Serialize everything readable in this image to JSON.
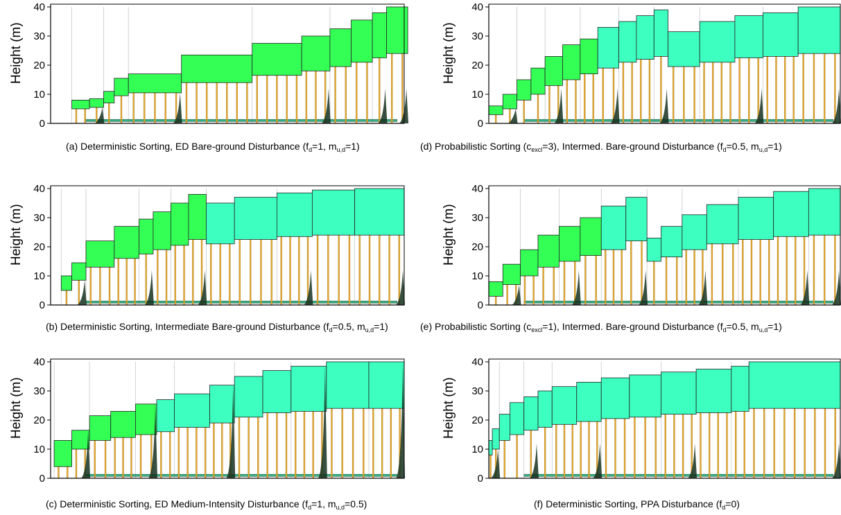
{
  "chart_data": [
    {
      "type": "area",
      "ylabel": "Height (m)",
      "ylim": [
        0,
        40
      ],
      "yticks": [
        0,
        10,
        20,
        30,
        40
      ],
      "caption": {
        "text": "(a) Deterministic Sorting, ED Bare-ground Disturbance (f",
        "sub1": "d",
        "mid1": "=1, m",
        "sub2": "u,d",
        "tail": "=1)"
      },
      "crowns": [
        {
          "x": 0.06,
          "w": 0.05,
          "top": 8,
          "bottom": 5
        },
        {
          "x": 0.11,
          "w": 0.04,
          "top": 8.5,
          "bottom": 5.5
        },
        {
          "x": 0.15,
          "w": 0.03,
          "top": 11,
          "bottom": 7
        },
        {
          "x": 0.18,
          "w": 0.04,
          "top": 15.5,
          "bottom": 9.5
        },
        {
          "x": 0.22,
          "w": 0.15,
          "top": 17,
          "bottom": 10.5
        },
        {
          "x": 0.37,
          "w": 0.2,
          "top": 23.5,
          "bottom": 14
        },
        {
          "x": 0.57,
          "w": 0.14,
          "top": 27.5,
          "bottom": 16.5
        },
        {
          "x": 0.71,
          "w": 0.08,
          "top": 30,
          "bottom": 18
        },
        {
          "x": 0.79,
          "w": 0.06,
          "top": 32.5,
          "bottom": 19.5
        },
        {
          "x": 0.85,
          "w": 0.06,
          "top": 35.5,
          "bottom": 21
        },
        {
          "x": 0.91,
          "w": 0.04,
          "top": 38,
          "bottom": 22.5
        },
        {
          "x": 0.95,
          "w": 0.06,
          "top": 40,
          "bottom": 24
        }
      ]
    },
    {
      "type": "area",
      "ylabel": "Height (m)",
      "ylim": [
        0,
        40
      ],
      "yticks": [
        0,
        10,
        20,
        30,
        40
      ],
      "caption": {
        "text": "(b) Deterministic Sorting, Intermediate Bare-ground Disturbance (f",
        "sub1": "d",
        "mid1": "=0.5, m",
        "sub2": "u,d",
        "tail": "=1)"
      },
      "crowns": [
        {
          "x": 0.03,
          "w": 0.03,
          "top": 10,
          "bottom": 5
        },
        {
          "x": 0.06,
          "w": 0.04,
          "top": 14.5,
          "bottom": 8.5
        },
        {
          "x": 0.1,
          "w": 0.08,
          "top": 22,
          "bottom": 13
        },
        {
          "x": 0.18,
          "w": 0.07,
          "top": 27,
          "bottom": 16
        },
        {
          "x": 0.25,
          "w": 0.04,
          "top": 29.5,
          "bottom": 17.5
        },
        {
          "x": 0.29,
          "w": 0.05,
          "top": 32,
          "bottom": 19
        },
        {
          "x": 0.34,
          "w": 0.05,
          "top": 35,
          "bottom": 20.5
        },
        {
          "x": 0.39,
          "w": 0.05,
          "top": 38,
          "bottom": 22.5
        },
        {
          "x": 0.44,
          "w": 0.08,
          "top": 35,
          "bottom": 21
        },
        {
          "x": 0.52,
          "w": 0.12,
          "top": 37,
          "bottom": 22.5
        },
        {
          "x": 0.64,
          "w": 0.1,
          "top": 38.5,
          "bottom": 23.5
        },
        {
          "x": 0.74,
          "w": 0.12,
          "top": 39.5,
          "bottom": 24
        },
        {
          "x": 0.86,
          "w": 0.14,
          "top": 40,
          "bottom": 24
        }
      ]
    },
    {
      "type": "area",
      "ylabel": "Height (m)",
      "ylim": [
        0,
        40
      ],
      "yticks": [
        0,
        10,
        20,
        30,
        40
      ],
      "caption": {
        "text": "(c) Deterministic Sorting, ED Medium-Intensity Disturbance (f",
        "sub1": "d",
        "mid1": "=1, m",
        "sub2": "u,d",
        "tail": "=0.5)"
      },
      "crowns": [
        {
          "x": 0.01,
          "w": 0.05,
          "top": 13,
          "bottom": 4
        },
        {
          "x": 0.06,
          "w": 0.05,
          "top": 16.5,
          "bottom": 10
        },
        {
          "x": 0.11,
          "w": 0.06,
          "top": 21.5,
          "bottom": 13
        },
        {
          "x": 0.17,
          "w": 0.07,
          "top": 23,
          "bottom": 14
        },
        {
          "x": 0.24,
          "w": 0.06,
          "top": 25.5,
          "bottom": 15
        },
        {
          "x": 0.3,
          "w": 0.05,
          "top": 27,
          "bottom": 16
        },
        {
          "x": 0.35,
          "w": 0.1,
          "top": 29,
          "bottom": 17.5
        },
        {
          "x": 0.45,
          "w": 0.07,
          "top": 32,
          "bottom": 19
        },
        {
          "x": 0.52,
          "w": 0.08,
          "top": 35,
          "bottom": 21
        },
        {
          "x": 0.6,
          "w": 0.08,
          "top": 37,
          "bottom": 22.5
        },
        {
          "x": 0.68,
          "w": 0.1,
          "top": 38.5,
          "bottom": 23
        },
        {
          "x": 0.78,
          "w": 0.12,
          "top": 40,
          "bottom": 24
        },
        {
          "x": 0.9,
          "w": 0.1,
          "top": 40,
          "bottom": 24
        }
      ]
    },
    {
      "type": "area",
      "ylabel": "Height (m)",
      "ylim": [
        0,
        40
      ],
      "yticks": [
        0,
        10,
        20,
        30,
        40
      ],
      "caption": {
        "text": "(d) Probabilistic Sorting (c",
        "sub0": "excl",
        "text0": "=3), Intermed. Bare-ground Disturbance (f",
        "sub1": "d",
        "mid1": "=0.5, m",
        "sub2": "u,d",
        "tail": "=1)"
      },
      "crowns": [
        {
          "x": 0.0,
          "w": 0.04,
          "top": 6,
          "bottom": 3
        },
        {
          "x": 0.04,
          "w": 0.04,
          "top": 10,
          "bottom": 5
        },
        {
          "x": 0.08,
          "w": 0.04,
          "top": 15,
          "bottom": 8
        },
        {
          "x": 0.12,
          "w": 0.04,
          "top": 19,
          "bottom": 10
        },
        {
          "x": 0.16,
          "w": 0.05,
          "top": 23,
          "bottom": 13
        },
        {
          "x": 0.21,
          "w": 0.05,
          "top": 27,
          "bottom": 15
        },
        {
          "x": 0.26,
          "w": 0.05,
          "top": 29,
          "bottom": 17
        },
        {
          "x": 0.31,
          "w": 0.06,
          "top": 33,
          "bottom": 19
        },
        {
          "x": 0.37,
          "w": 0.05,
          "top": 35,
          "bottom": 21
        },
        {
          "x": 0.42,
          "w": 0.05,
          "top": 37,
          "bottom": 22
        },
        {
          "x": 0.47,
          "w": 0.04,
          "top": 39,
          "bottom": 23
        },
        {
          "x": 0.51,
          "w": 0.09,
          "top": 31.5,
          "bottom": 19.5
        },
        {
          "x": 0.6,
          "w": 0.1,
          "top": 35,
          "bottom": 21
        },
        {
          "x": 0.7,
          "w": 0.08,
          "top": 37,
          "bottom": 22.5
        },
        {
          "x": 0.78,
          "w": 0.1,
          "top": 38,
          "bottom": 23
        },
        {
          "x": 0.88,
          "w": 0.12,
          "top": 40,
          "bottom": 24
        }
      ]
    },
    {
      "type": "area",
      "ylabel": "Height (m)",
      "ylim": [
        0,
        40
      ],
      "yticks": [
        0,
        10,
        20,
        30,
        40
      ],
      "caption": {
        "text": "(e) Probabilistic Sorting (c",
        "sub0": "excl",
        "text0": "=1), Intermed. Bare-ground Disturbance (f",
        "sub1": "d",
        "mid1": "=0.5, m",
        "sub2": "u,d",
        "tail": "=1)"
      },
      "crowns": [
        {
          "x": 0.0,
          "w": 0.04,
          "top": 8,
          "bottom": 3
        },
        {
          "x": 0.04,
          "w": 0.05,
          "top": 14,
          "bottom": 7
        },
        {
          "x": 0.09,
          "w": 0.05,
          "top": 19,
          "bottom": 10
        },
        {
          "x": 0.14,
          "w": 0.06,
          "top": 24,
          "bottom": 13
        },
        {
          "x": 0.2,
          "w": 0.06,
          "top": 27,
          "bottom": 15
        },
        {
          "x": 0.26,
          "w": 0.06,
          "top": 30,
          "bottom": 17
        },
        {
          "x": 0.32,
          "w": 0.07,
          "top": 34,
          "bottom": 19
        },
        {
          "x": 0.39,
          "w": 0.06,
          "top": 37,
          "bottom": 22
        },
        {
          "x": 0.45,
          "w": 0.04,
          "top": 23,
          "bottom": 15
        },
        {
          "x": 0.49,
          "w": 0.06,
          "top": 27,
          "bottom": 16.5
        },
        {
          "x": 0.55,
          "w": 0.07,
          "top": 31,
          "bottom": 19
        },
        {
          "x": 0.62,
          "w": 0.09,
          "top": 34.5,
          "bottom": 21
        },
        {
          "x": 0.71,
          "w": 0.1,
          "top": 37,
          "bottom": 22.5
        },
        {
          "x": 0.81,
          "w": 0.1,
          "top": 39,
          "bottom": 23.5
        },
        {
          "x": 0.91,
          "w": 0.09,
          "top": 40,
          "bottom": 24
        }
      ]
    },
    {
      "type": "area",
      "ylabel": "Height (m)",
      "ylim": [
        0,
        40
      ],
      "yticks": [
        0,
        10,
        20,
        30,
        40
      ],
      "caption": {
        "text": "(f) Deterministic Sorting, PPA Disturbance (f",
        "sub1": "d",
        "tail": "=0)"
      },
      "crowns": [
        {
          "x": 0.0,
          "w": 0.01,
          "top": 13,
          "bottom": 8
        },
        {
          "x": 0.01,
          "w": 0.02,
          "top": 17,
          "bottom": 10
        },
        {
          "x": 0.03,
          "w": 0.03,
          "top": 22,
          "bottom": 13
        },
        {
          "x": 0.06,
          "w": 0.04,
          "top": 26,
          "bottom": 15
        },
        {
          "x": 0.1,
          "w": 0.04,
          "top": 28,
          "bottom": 16.5
        },
        {
          "x": 0.14,
          "w": 0.04,
          "top": 30,
          "bottom": 17.5
        },
        {
          "x": 0.18,
          "w": 0.07,
          "top": 31.5,
          "bottom": 18.5
        },
        {
          "x": 0.25,
          "w": 0.07,
          "top": 33,
          "bottom": 19.5
        },
        {
          "x": 0.32,
          "w": 0.08,
          "top": 34.5,
          "bottom": 20.5
        },
        {
          "x": 0.4,
          "w": 0.09,
          "top": 35.5,
          "bottom": 21
        },
        {
          "x": 0.49,
          "w": 0.1,
          "top": 36.5,
          "bottom": 22
        },
        {
          "x": 0.59,
          "w": 0.1,
          "top": 37.5,
          "bottom": 22.5
        },
        {
          "x": 0.69,
          "w": 0.05,
          "top": 38.5,
          "bottom": 23
        },
        {
          "x": 0.74,
          "w": 0.26,
          "top": 40,
          "bottom": 24
        }
      ]
    }
  ],
  "colors": {
    "green": "#33ff55",
    "teal": "#3dffbf",
    "darkTeal": "#1fa874",
    "trunk": "#e7a92d",
    "outline": "#222222"
  }
}
